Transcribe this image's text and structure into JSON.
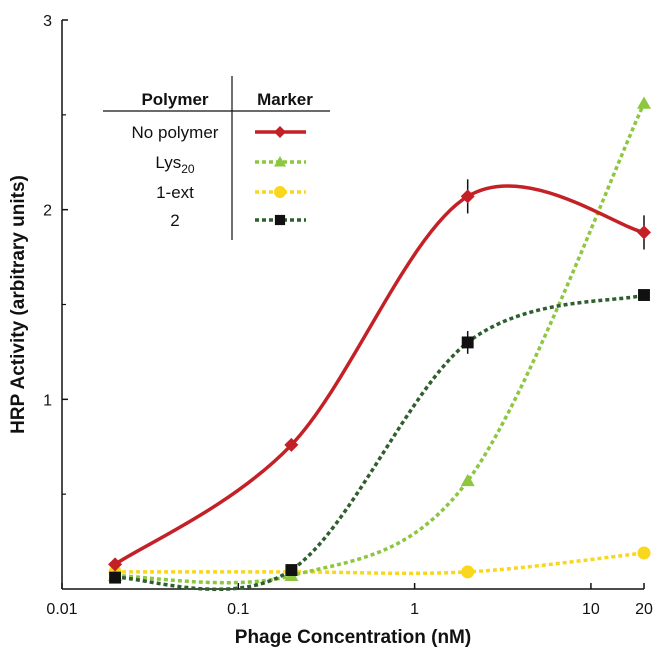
{
  "chart_data": {
    "type": "line",
    "xscale": "log",
    "xlim": [
      0.01,
      20
    ],
    "ylim": [
      0,
      3
    ],
    "xlabel": "Phage Concentration (nM)",
    "ylabel": "HRP Activity (arbitrary units)",
    "xticks": [
      {
        "value": 0.01,
        "label": "0.01"
      },
      {
        "value": 0.1,
        "label": "0.1"
      },
      {
        "value": 1,
        "label": "1"
      },
      {
        "value": 10,
        "label": "10"
      },
      {
        "value": 20,
        "label": "20"
      }
    ],
    "yticks": [
      {
        "value": 1,
        "label": "1"
      },
      {
        "value": 2,
        "label": "2"
      },
      {
        "value": 3,
        "label": "3"
      }
    ],
    "y_minor_ticks": [
      0.5,
      1.5,
      2.5
    ],
    "legend": {
      "header_series": "Polymer",
      "header_marker": "Marker",
      "placement": "top-left"
    },
    "series": [
      {
        "name": "No polymer",
        "name_base": "No polymer",
        "name_sub": "",
        "color": "#c42127",
        "marker": "diamond",
        "dashed": false,
        "x": [
          0.02,
          0.2,
          2,
          20
        ],
        "y": [
          0.13,
          0.76,
          2.07,
          1.88
        ],
        "err": [
          0,
          0,
          0.09,
          0.09
        ]
      },
      {
        "name": "Lys20",
        "name_base": "Lys",
        "name_sub": "20",
        "color": "#8dc63f",
        "marker": "triangle",
        "dashed": true,
        "x": [
          0.02,
          0.2,
          2,
          20
        ],
        "y": [
          0.07,
          0.07,
          0.57,
          2.56
        ],
        "err": [
          0,
          0,
          0,
          0
        ]
      },
      {
        "name": "1-ext",
        "name_base": "1-ext",
        "name_sub": "",
        "color": "#f9d71c",
        "marker": "circle",
        "dashed": true,
        "x": [
          0.02,
          0.2,
          2,
          20
        ],
        "y": [
          0.09,
          0.09,
          0.09,
          0.19
        ],
        "err": [
          0,
          0,
          0,
          0
        ]
      },
      {
        "name": "2",
        "name_base": "2",
        "name_sub": "",
        "color": "#2f5f2f",
        "marker": "square",
        "dashed": true,
        "x": [
          0.02,
          0.2,
          2,
          20
        ],
        "y": [
          0.06,
          0.1,
          1.3,
          1.55
        ],
        "err": [
          0,
          0,
          0.06,
          0
        ]
      }
    ]
  }
}
